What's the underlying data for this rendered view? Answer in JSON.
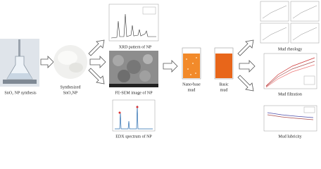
{
  "synthesis": {
    "label": "SnO₂ NP synthesis",
    "product": [
      "Synthesized",
      "SnO₂NP"
    ]
  },
  "characterization": {
    "xrd": "XRD pattern of NP",
    "sem": "FE-SEM image of NP",
    "edx": "EDX spectrum of NP"
  },
  "muds": {
    "nano_base": [
      "Nano-base",
      "mud"
    ],
    "basic": [
      "Basic",
      "mud"
    ]
  },
  "tests": {
    "rheology": "Mud rheology",
    "filtration": "Mud filtration",
    "lubricity": "Mud lubricity"
  }
}
